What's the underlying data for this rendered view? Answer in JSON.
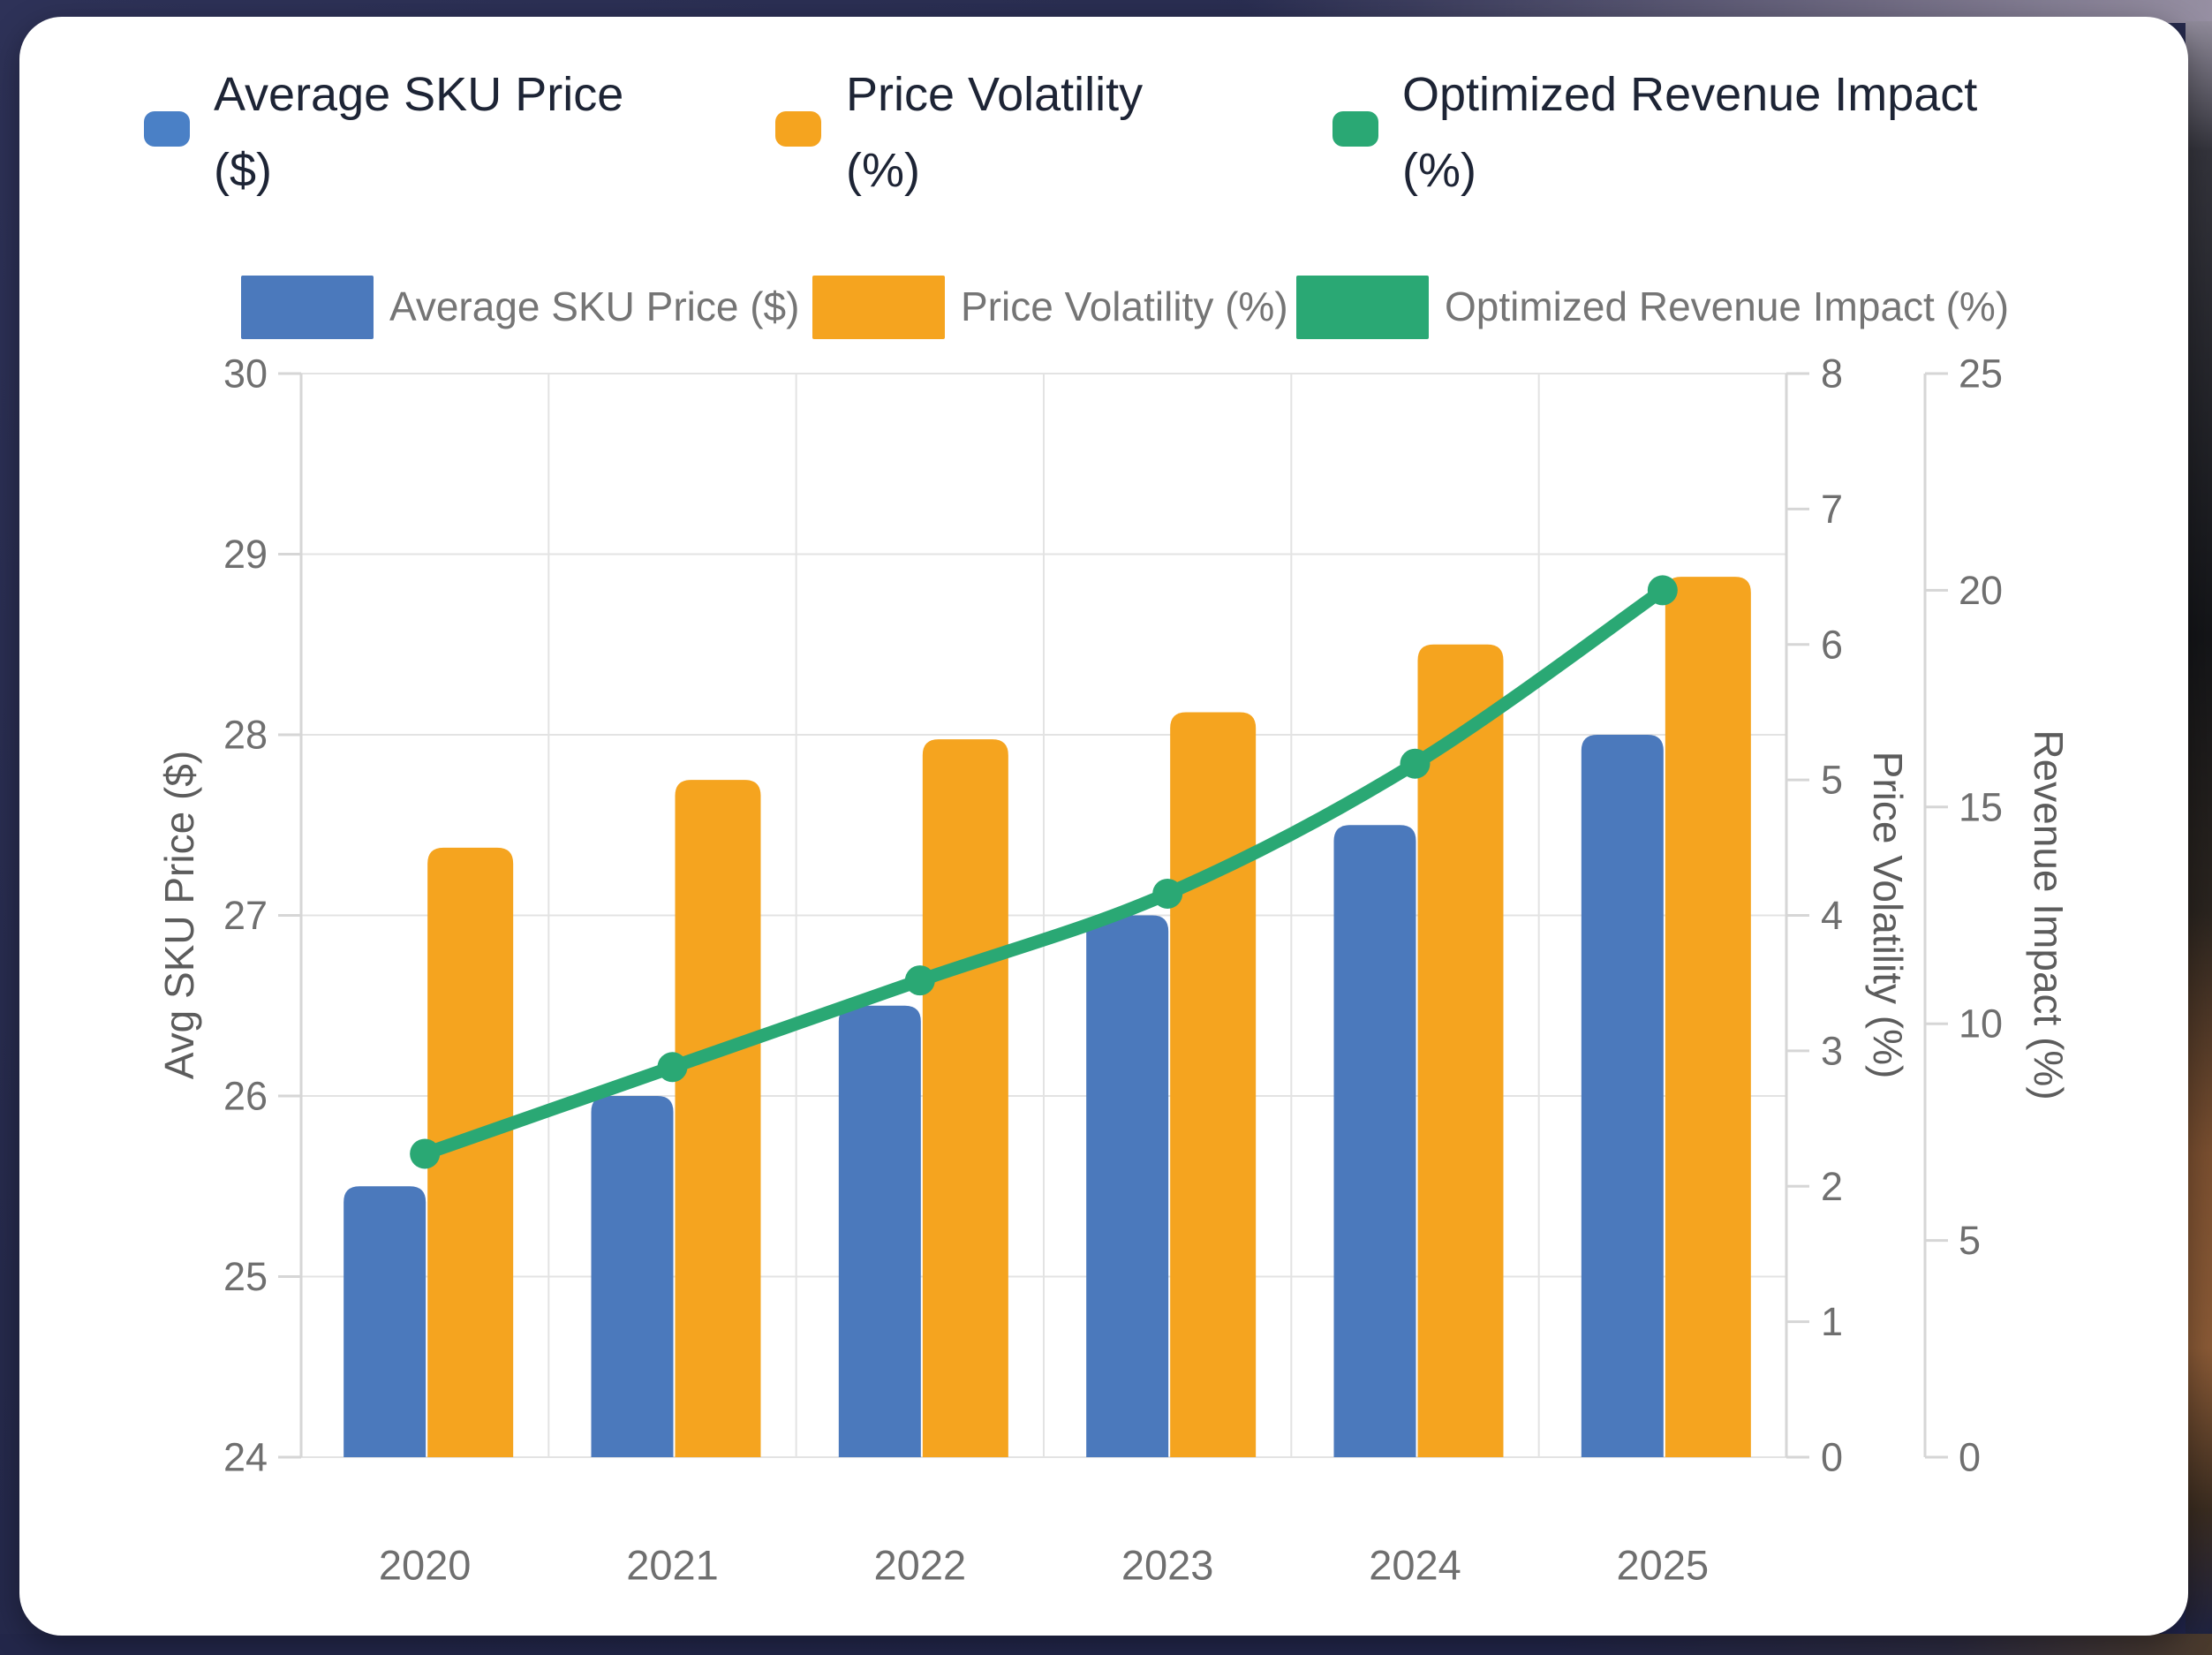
{
  "colors": {
    "page_bg": "#262a4c",
    "card_bg": "#ffffff",
    "grid": "#e3e3e3",
    "axis_line": "#d6d6d6",
    "tick_text": "#6f6f6f",
    "axis_title_text": "#5c5c5c",
    "legend_text": "#757575",
    "top_legend_text": "#1d2435"
  },
  "top_legend": {
    "items": [
      {
        "label": "Average SKU Price",
        "unit": "($)",
        "color": "#4a80c6"
      },
      {
        "label": "Price Volatility",
        "unit": "(%)",
        "color": "#f5a41f"
      },
      {
        "label": "Optimized Revenue Impact",
        "unit": "(%)",
        "color": "#2aa874"
      }
    ]
  },
  "chart_data": {
    "type": "bar+line combo",
    "categories": [
      "2020",
      "2021",
      "2022",
      "2023",
      "2024",
      "2025"
    ],
    "series": [
      {
        "name": "Average SKU Price ($)",
        "type": "bar",
        "axis": "left",
        "color": "#4b79bc",
        "values": [
          25.5,
          26.0,
          26.5,
          27.0,
          27.5,
          28.0
        ]
      },
      {
        "name": "Price Volatility (%)",
        "type": "bar",
        "axis": "right1",
        "color": "#f5a41f",
        "values": [
          4.5,
          5.0,
          5.3,
          5.5,
          6.0,
          6.5
        ]
      },
      {
        "name": "Optimized Revenue Impact (%)",
        "type": "line",
        "axis": "right2",
        "color": "#2aa874",
        "values": [
          7,
          9,
          11,
          13,
          16,
          20
        ]
      }
    ],
    "axes": {
      "left": {
        "title": "Avg SKU Price ($)",
        "min": 24,
        "max": 30,
        "ticks": [
          30,
          29,
          28,
          27,
          26,
          25,
          24
        ]
      },
      "right1": {
        "title": "Price Volatility (%)",
        "min": 0,
        "max": 8,
        "ticks": [
          8,
          7,
          6,
          5,
          4,
          3,
          2,
          1,
          0
        ]
      },
      "right2": {
        "title": "Revenue Impact (%)",
        "min": 0,
        "max": 25,
        "ticks": [
          25,
          20,
          15,
          10,
          5,
          0
        ]
      }
    },
    "legend_position": "top",
    "grid": true
  }
}
